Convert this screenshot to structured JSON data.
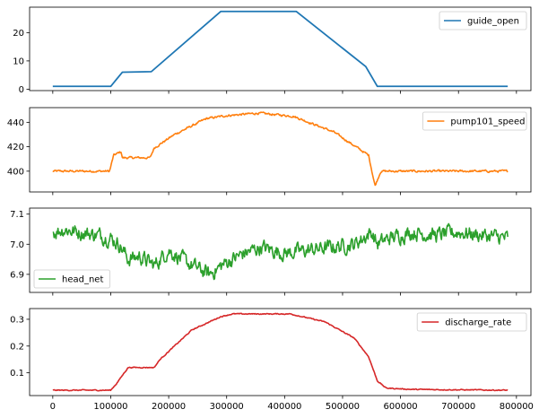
{
  "chart_data": [
    {
      "type": "line",
      "series": [
        {
          "name": "guide_open",
          "color": "#1f77b4",
          "points": [
            [
              0,
              1
            ],
            [
              100000,
              1
            ],
            [
              120000,
              6
            ],
            [
              170000,
              6.2
            ],
            [
              290000,
              27.5
            ],
            [
              420000,
              27.5
            ],
            [
              540000,
              8
            ],
            [
              560000,
              1
            ],
            [
              785000,
              1
            ]
          ]
        }
      ],
      "ylim": [
        -0.5,
        29
      ],
      "yticks": [
        0,
        10,
        20
      ],
      "xlim": [
        -40000,
        825000
      ],
      "legend": "top-right",
      "noise": 0
    },
    {
      "type": "line",
      "series": [
        {
          "name": "pump101_speed",
          "color": "#ff7f0e",
          "points": [
            [
              0,
              400
            ],
            [
              98000,
              400
            ],
            [
              105000,
              413
            ],
            [
              118000,
              416
            ],
            [
              120000,
              411
            ],
            [
              168000,
              411
            ],
            [
              175000,
              419
            ],
            [
              210000,
              430
            ],
            [
              265000,
              443
            ],
            [
              300000,
              445.5
            ],
            [
              355000,
              447.5
            ],
            [
              415000,
              445
            ],
            [
              485000,
              432
            ],
            [
              545000,
              413
            ],
            [
              556000,
              388
            ],
            [
              566000,
              400
            ],
            [
              785000,
              400
            ]
          ]
        }
      ],
      "ylim": [
        383,
        452
      ],
      "yticks": [
        400,
        420,
        440
      ],
      "xlim": [
        -40000,
        825000
      ],
      "legend": "top-right",
      "noise": 0.7
    },
    {
      "type": "line",
      "series": [
        {
          "name": "head_net",
          "color": "#2ca02c",
          "points": [
            [
              0,
              7.04
            ],
            [
              20000,
              7.05
            ],
            [
              45000,
              7.04
            ],
            [
              80000,
              7.03
            ],
            [
              100000,
              7.02
            ],
            [
              115000,
              7.0
            ],
            [
              130000,
              6.95
            ],
            [
              150000,
              6.96
            ],
            [
              175000,
              6.93
            ],
            [
              200000,
              6.98
            ],
            [
              230000,
              6.94
            ],
            [
              270000,
              6.9
            ],
            [
              300000,
              6.94
            ],
            [
              330000,
              6.97
            ],
            [
              360000,
              6.99
            ],
            [
              400000,
              6.97
            ],
            [
              440000,
              6.98
            ],
            [
              480000,
              6.99
            ],
            [
              520000,
              7.0
            ],
            [
              550000,
              7.04
            ],
            [
              560000,
              7.0
            ],
            [
              580000,
              7.02
            ],
            [
              620000,
              7.04
            ],
            [
              660000,
              7.03
            ],
            [
              700000,
              7.04
            ],
            [
              740000,
              7.03
            ],
            [
              785000,
              7.02
            ]
          ]
        }
      ],
      "ylim": [
        6.84,
        7.12
      ],
      "yticks": [
        6.9,
        7.0,
        7.1
      ],
      "xlim": [
        -40000,
        825000
      ],
      "legend": "bottom-left",
      "noise": 0.02
    },
    {
      "type": "line",
      "series": [
        {
          "name": "discharge_rate",
          "color": "#d62728",
          "points": [
            [
              0,
              0.035
            ],
            [
              100000,
              0.035
            ],
            [
              110000,
              0.06
            ],
            [
              130000,
              0.12
            ],
            [
              175000,
              0.12
            ],
            [
              185000,
              0.15
            ],
            [
              240000,
              0.26
            ],
            [
              290000,
              0.31
            ],
            [
              310000,
              0.32
            ],
            [
              410000,
              0.32
            ],
            [
              470000,
              0.29
            ],
            [
              520000,
              0.23
            ],
            [
              545000,
              0.16
            ],
            [
              560000,
              0.07
            ],
            [
              575000,
              0.043
            ],
            [
              620000,
              0.038
            ],
            [
              785000,
              0.035
            ]
          ]
        }
      ],
      "ylim": [
        0.015,
        0.34
      ],
      "yticks": [
        0.1,
        0.2,
        0.3
      ],
      "xlim": [
        -40000,
        825000
      ],
      "xticks": [
        0,
        100000,
        200000,
        300000,
        400000,
        500000,
        600000,
        700000,
        800000
      ],
      "legend": "top-right",
      "noise": 0.0015
    }
  ]
}
